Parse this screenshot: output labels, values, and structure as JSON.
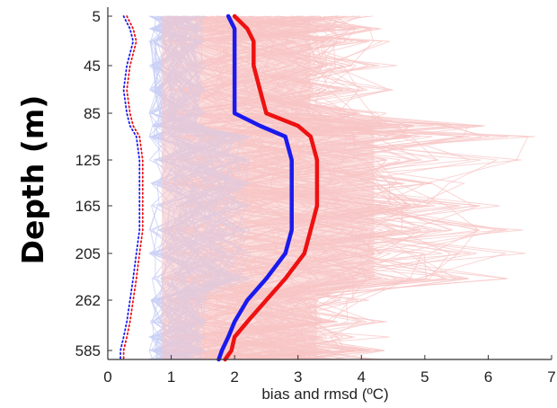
{
  "chart_data": {
    "type": "line",
    "title": "",
    "xlabel": "bias and rmsd (ºC)",
    "ylabel": "Depth (m)",
    "xlim": [
      0,
      7
    ],
    "x_ticks": [
      0,
      1,
      2,
      3,
      4,
      5,
      6,
      7
    ],
    "y_ticks": [
      "5",
      "45",
      "85",
      "125",
      "165",
      "205",
      "262",
      "585"
    ],
    "y_scale": "categorical depth levels (non-linear)",
    "grid": false,
    "legend": "none",
    "colors": {
      "bias": "#1a1aee",
      "rmsd": "#ee1111",
      "bias_individual": "#c9cff5",
      "rmsd_individual": "#f8c5c5"
    },
    "series": [
      {
        "id": "bias-mean",
        "style": "thick solid",
        "depths": [
          "5",
          "15",
          "25",
          "45",
          "65",
          "85",
          "95",
          "105",
          "125",
          "145",
          "165",
          "185",
          "205",
          "235",
          "262",
          "400",
          "500",
          "585",
          "620"
        ],
        "values": [
          1.9,
          2.0,
          2.0,
          2.0,
          2.0,
          2.0,
          2.4,
          2.8,
          2.9,
          2.9,
          2.9,
          2.9,
          2.8,
          2.5,
          2.2,
          2.0,
          1.9,
          1.8,
          1.75
        ]
      },
      {
        "id": "rmsd-mean",
        "style": "thick solid",
        "depths": [
          "5",
          "15",
          "25",
          "45",
          "65",
          "85",
          "95",
          "105",
          "125",
          "145",
          "165",
          "185",
          "205",
          "235",
          "262",
          "400",
          "500",
          "585",
          "620"
        ],
        "values": [
          2.0,
          2.2,
          2.3,
          2.3,
          2.4,
          2.5,
          3.0,
          3.2,
          3.3,
          3.3,
          3.3,
          3.2,
          3.1,
          2.8,
          2.5,
          2.2,
          2.0,
          1.95,
          1.85
        ]
      },
      {
        "id": "bias-mean-dotted",
        "style": "dotted",
        "depths": [
          "5",
          "15",
          "25",
          "45",
          "65",
          "85",
          "95",
          "105",
          "125",
          "145",
          "165",
          "185",
          "205",
          "235",
          "262",
          "400",
          "500",
          "585",
          "620"
        ],
        "values": [
          0.25,
          0.35,
          0.4,
          0.3,
          0.25,
          0.3,
          0.35,
          0.45,
          0.5,
          0.5,
          0.5,
          0.5,
          0.45,
          0.4,
          0.35,
          0.3,
          0.25,
          0.2,
          0.2
        ]
      },
      {
        "id": "rmsd-mean-dotted",
        "style": "dotted",
        "depths": [
          "5",
          "15",
          "25",
          "45",
          "65",
          "85",
          "95",
          "105",
          "125",
          "145",
          "165",
          "185",
          "205",
          "235",
          "262",
          "400",
          "500",
          "585",
          "620"
        ],
        "values": [
          0.3,
          0.4,
          0.45,
          0.35,
          0.3,
          0.35,
          0.4,
          0.5,
          0.55,
          0.55,
          0.55,
          0.55,
          0.5,
          0.45,
          0.4,
          0.35,
          0.3,
          0.25,
          0.25
        ]
      }
    ]
  }
}
